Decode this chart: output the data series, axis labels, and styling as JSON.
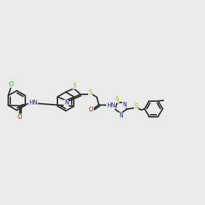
{
  "background": "#eaeaea",
  "bond_color": "#2a2a2a",
  "bond_lw": 1.4,
  "dbo": 0.009,
  "figsize": [
    3.0,
    3.0
  ],
  "dpi": 100,
  "colors": {
    "C": "#2a2a2a",
    "N": "#1a1acc",
    "O": "#cc1a1a",
    "S": "#aaaa00",
    "Cl": "#22aa22",
    "H": "#2a2a2a"
  },
  "fs": 6.0
}
